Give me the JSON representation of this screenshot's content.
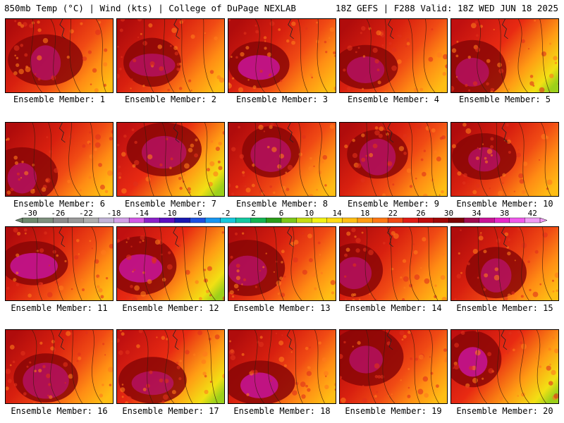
{
  "header": {
    "left": "850mb Temp (°C) | Wind (kts) | College of DuPage NEXLAB",
    "right": "18Z GEFS | F288 Valid: 18Z WED JUN 18 2025"
  },
  "panels": [
    {
      "caption": "Ensemble Member: 1"
    },
    {
      "caption": "Ensemble Member: 2"
    },
    {
      "caption": "Ensemble Member: 3"
    },
    {
      "caption": "Ensemble Member: 4"
    },
    {
      "caption": "Ensemble Member: 5"
    },
    {
      "caption": "Ensemble Member: 6"
    },
    {
      "caption": "Ensemble Member: 7"
    },
    {
      "caption": "Ensemble Member: 8"
    },
    {
      "caption": "Ensemble Member: 9"
    },
    {
      "caption": "Ensemble Member: 10"
    },
    {
      "caption": "Ensemble Member: 11"
    },
    {
      "caption": "Ensemble Member: 12"
    },
    {
      "caption": "Ensemble Member: 13"
    },
    {
      "caption": "Ensemble Member: 14"
    },
    {
      "caption": "Ensemble Member: 15"
    },
    {
      "caption": "Ensemble Member: 16"
    },
    {
      "caption": "Ensemble Member: 17"
    },
    {
      "caption": "Ensemble Member: 18"
    },
    {
      "caption": "Ensemble Member: 19"
    },
    {
      "caption": "Ensemble Member: 20"
    }
  ],
  "colorbar": {
    "labels": [
      "-30",
      "-26",
      "-22",
      "-18",
      "-14",
      "-10",
      "-6",
      "-2",
      "2",
      "6",
      "10",
      "14",
      "18",
      "22",
      "26",
      "30",
      "34",
      "38",
      "42"
    ],
    "colors": [
      "#6e8a6e",
      "#7e907e",
      "#8c8c8c",
      "#9a9a9a",
      "#aeaeae",
      "#c2b4d8",
      "#d2a0e8",
      "#d25ae6",
      "#8a20c8",
      "#5a10c0",
      "#1818b0",
      "#1c50e0",
      "#1896f0",
      "#16c8dc",
      "#14c8a0",
      "#12b452",
      "#2a9c1a",
      "#7cc81a",
      "#c6dc14",
      "#f2f214",
      "#ffdc14",
      "#ffbe14",
      "#ff9c14",
      "#ff7814",
      "#f04a14",
      "#e01c14",
      "#c00c0c",
      "#a00606",
      "#7c0404",
      "#a00c50",
      "#c81496",
      "#e628c8",
      "#f05aec",
      "#f09cf4"
    ]
  }
}
